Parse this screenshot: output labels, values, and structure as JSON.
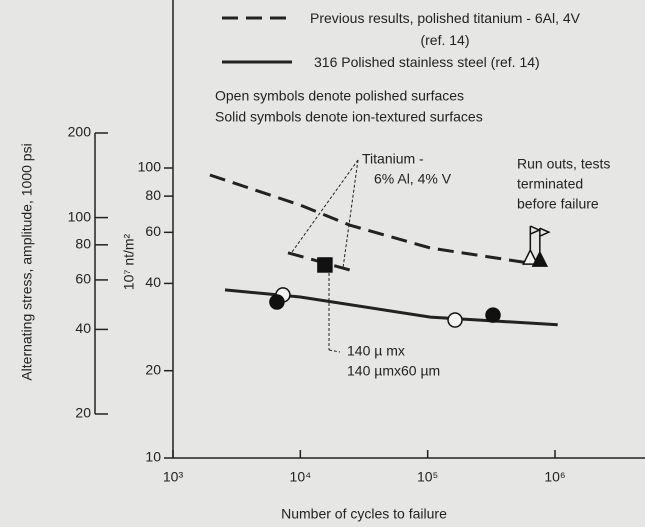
{
  "chart_data": {
    "type": "line",
    "x_label": "Number of cycles to failure",
    "y_label": "10⁷ nt/m²",
    "y2_label": "Alternating stress, amplitude, 1000 psi",
    "xscale": "log",
    "yscale": "log",
    "xlim": [
      1000,
      1000000
    ],
    "xticks": [
      {
        "value": 1000,
        "label": "10³"
      },
      {
        "value": 10000,
        "label": "10⁴"
      },
      {
        "value": 100000,
        "label": "10⁵"
      },
      {
        "value": 1000000,
        "label": "10⁶"
      }
    ],
    "ylim": [
      10,
      100
    ],
    "yticks": [
      10,
      20,
      40,
      60,
      80,
      100
    ],
    "y2lim": [
      20,
      200
    ],
    "y2ticks": [
      20,
      40,
      60,
      80,
      100,
      200
    ],
    "series": [
      {
        "name": "Previous results, polished titanium - 6Al, 4V (ref. 14)",
        "color": "#222222",
        "dash": "dashed",
        "x": [
          1950,
          10000,
          24500,
          105000,
          630000
        ],
        "values": [
          94.6,
          74.5,
          63.5,
          53,
          47
        ]
      },
      {
        "name": "316 Polished stainless steel (ref. 14)",
        "color": "#222222",
        "dash": "solid",
        "x": [
          2560,
          10000,
          105000,
          1050000
        ],
        "values": [
          38,
          35.9,
          30.6,
          28.8
        ]
      }
    ],
    "lines": [
      {
        "color": "#222222",
        "dash": "dashed",
        "x": [
          8000,
          24500
        ],
        "values": [
          51,
          44.5
        ]
      }
    ],
    "points": [
      {
        "x": 7300,
        "y": 36.5,
        "marker": "circle",
        "filled": false
      },
      {
        "x": 6550,
        "y": 34.5,
        "marker": "circle",
        "filled": true
      },
      {
        "x": 15600,
        "y": 46.3,
        "marker": "square",
        "filled": true
      },
      {
        "x": 164000,
        "y": 29.9,
        "marker": "circle",
        "filled": false
      },
      {
        "x": 326000,
        "y": 31.1,
        "marker": "circle",
        "filled": true
      },
      {
        "x": 640000,
        "y": 48.9,
        "marker": "triangle",
        "filled": false,
        "runout": true
      },
      {
        "x": 760000,
        "y": 48.1,
        "marker": "triangle",
        "filled": true,
        "runout": true
      }
    ],
    "notes": [
      "Open symbols denote polished surfaces",
      "Solid symbols denote ion-textured surfaces"
    ],
    "annotations": [
      {
        "lines": [
          "Titanium -",
          "6% Al, 4% V"
        ]
      },
      {
        "lines": [
          "Run outs, tests",
          "terminated",
          "before failure"
        ]
      },
      {
        "lines": [
          "140 µ mx",
          "140 µmx60 µm"
        ]
      }
    ]
  }
}
